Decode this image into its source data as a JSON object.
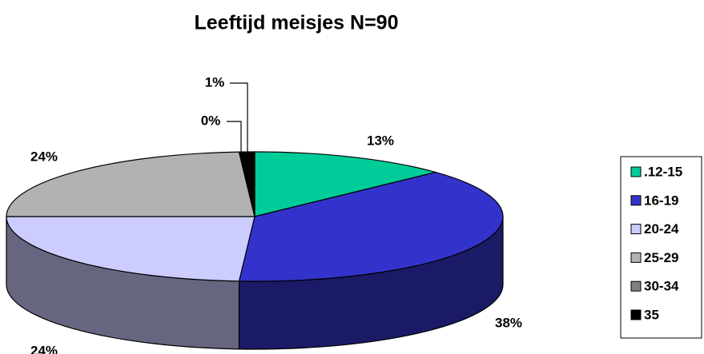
{
  "chart_data": {
    "type": "pie3d",
    "title": "Leeftijd meisjes N=90",
    "categories": [
      ".12-15",
      "16-19",
      "20-24",
      "25-29",
      "30-34",
      "35"
    ],
    "values": [
      13,
      38,
      24,
      24,
      0,
      1
    ],
    "value_labels": [
      "13%",
      "38%",
      "24%",
      "24%",
      "0%",
      "1%"
    ],
    "colors": [
      "#00cc99",
      "#3333cc",
      "#ccccff",
      "#b2b2b2",
      "#808080",
      "#000000"
    ],
    "legend": "right"
  }
}
